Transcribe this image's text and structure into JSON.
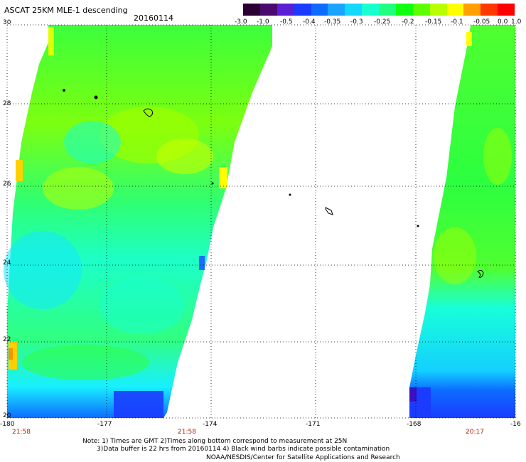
{
  "header": {
    "title": "ASCAT 25KM MLE-1 descending",
    "date": "20160114"
  },
  "colorbar": {
    "colors": [
      "#2a0033",
      "#4a0a6e",
      "#5b1fd6",
      "#1b3cff",
      "#0d6cff",
      "#1aa4ff",
      "#14d8ff",
      "#18ffd0",
      "#20ff80",
      "#10ff10",
      "#5cff00",
      "#b8ff00",
      "#ffff00",
      "#ffa000",
      "#ff3800",
      "#ff0000"
    ],
    "labels": [
      "-3.0",
      "-1.0",
      "-0.5",
      "-0.4",
      "-0.35",
      "-0.3",
      "-0.25",
      "-0.2",
      "-0.15",
      "-0.1",
      "-0.05",
      "0.0",
      "1.0"
    ]
  },
  "axes": {
    "y_labels": [
      "30",
      "28",
      "26",
      "24",
      "22",
      "20"
    ],
    "x_labels": [
      "-180",
      "-177",
      "-174",
      "-171",
      "-168",
      "-16"
    ]
  },
  "times": [
    "21:58",
    "21:58",
    "20:17"
  ],
  "notes": {
    "line1": "Note: 1) Times are GMT 2)Times along bottom correspond to measurement at 25N",
    "line2": "3)Data buffer is 22 hrs from 20160114 4) Black wind barbs indicate possible contamination",
    "credit": "NOAA/NESDIS/Center for Satellite Applications and Research"
  }
}
